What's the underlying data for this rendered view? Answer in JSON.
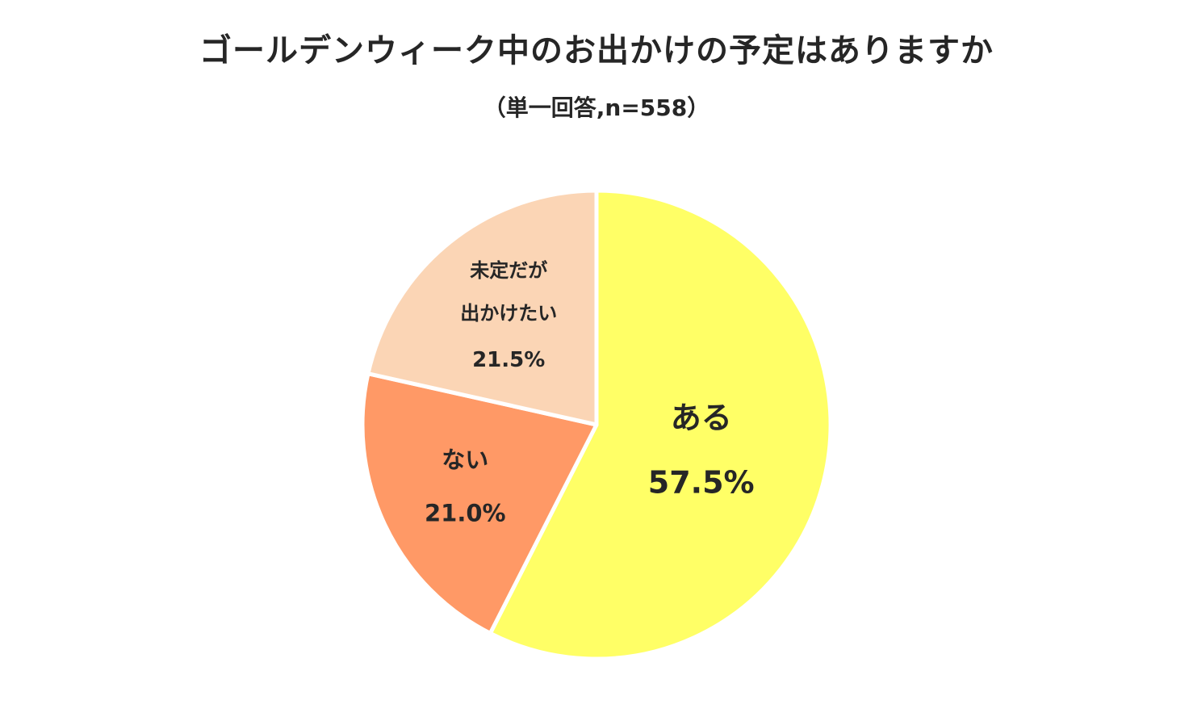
{
  "chart_data": {
    "type": "pie",
    "title": "ゴールデンウィーク中のお出かけの予定はありますか",
    "subtitle": "（単一回答,n=558）",
    "slices": [
      {
        "label": "ある",
        "value": 57.5,
        "value_label": "57.5%",
        "color": "#FFFF66"
      },
      {
        "label": "ない",
        "value": 21.0,
        "value_label": "21.0%",
        "color": "#FF9966"
      },
      {
        "label": "未定だが\n出かけたい",
        "value": 21.5,
        "value_label": "21.5%",
        "color": "#FBD5B5"
      }
    ],
    "start": "12 o'clock",
    "direction": "clockwise",
    "slice_border_color": "#FFFFFF"
  }
}
